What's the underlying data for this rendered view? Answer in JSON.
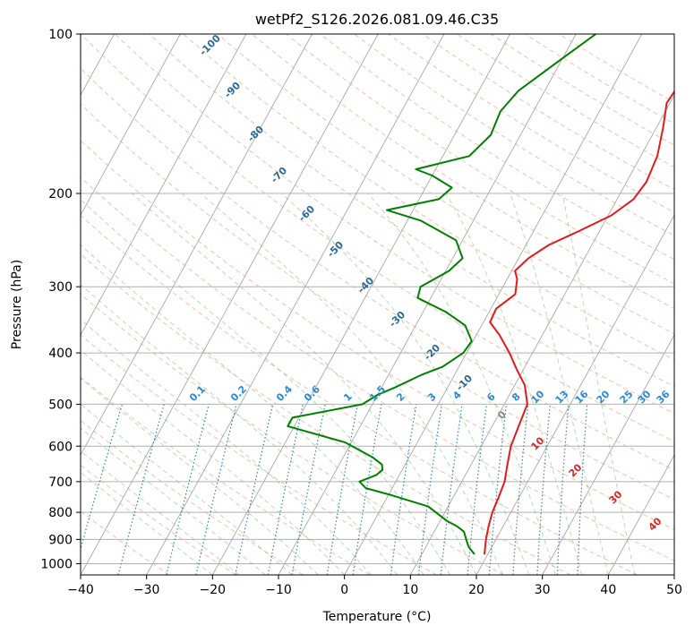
{
  "chart_data": {
    "type": "skew-t",
    "title": "wetPf2_S126.2026.081.09.46.C35",
    "xlabel": "Temperature (°C)",
    "ylabel": "Pressure (hPa)",
    "xlim": [
      -40,
      50
    ],
    "ylim": [
      1050,
      100
    ],
    "y_scale": "log",
    "grid": true,
    "x_ticks": [
      "−40",
      "−30",
      "−20",
      "−10",
      "0",
      "10",
      "20",
      "30",
      "40",
      "50"
    ],
    "x_tick_values": [
      -40,
      -30,
      -20,
      -10,
      0,
      10,
      20,
      30,
      40,
      50
    ],
    "y_ticks": [
      "100",
      "200",
      "300",
      "400",
      "500",
      "600",
      "700",
      "800",
      "900",
      "1000"
    ],
    "y_tick_values": [
      100,
      200,
      300,
      400,
      500,
      600,
      700,
      800,
      900,
      1000
    ],
    "series": [
      {
        "role": "temperature",
        "color": "#e31a1c",
        "points": [
          [
            19.5,
            960
          ],
          [
            18.5,
            900
          ],
          [
            17.8,
            850
          ],
          [
            17.2,
            800
          ],
          [
            16.9,
            750
          ],
          [
            16.5,
            700
          ],
          [
            15.5,
            650
          ],
          [
            14.5,
            600
          ],
          [
            14,
            550
          ],
          [
            13.5,
            500
          ],
          [
            11.5,
            460
          ],
          [
            9,
            430
          ],
          [
            6.5,
            400
          ],
          [
            3.5,
            370
          ],
          [
            1,
            350
          ],
          [
            0.8,
            330
          ],
          [
            2.5,
            310
          ],
          [
            1.5,
            290
          ],
          [
            0.5,
            280
          ],
          [
            1.5,
            265
          ],
          [
            3.5,
            250
          ],
          [
            7,
            235
          ],
          [
            10.5,
            220
          ],
          [
            12.5,
            205
          ],
          [
            13,
            190
          ],
          [
            12.5,
            170
          ],
          [
            11,
            150
          ],
          [
            9.5,
            135
          ],
          [
            10,
            120
          ],
          [
            9.5,
            110
          ],
          [
            9,
            100
          ]
        ]
      },
      {
        "role": "dewpoint",
        "color": "#008000",
        "points": [
          [
            18,
            960
          ],
          [
            16.5,
            930
          ],
          [
            15.5,
            900
          ],
          [
            14.5,
            870
          ],
          [
            13,
            850
          ],
          [
            11,
            830
          ],
          [
            7,
            780
          ],
          [
            0,
            740
          ],
          [
            -4,
            720
          ],
          [
            -5.5,
            700
          ],
          [
            -3.5,
            680
          ],
          [
            -3,
            665
          ],
          [
            -3.5,
            650
          ],
          [
            -5.5,
            630
          ],
          [
            -11,
            590
          ],
          [
            -21,
            550
          ],
          [
            -21,
            530
          ],
          [
            -11.5,
            500
          ],
          [
            -10,
            480
          ],
          [
            -8,
            465
          ],
          [
            -5,
            440
          ],
          [
            -2.5,
            425
          ],
          [
            -0.5,
            400
          ],
          [
            -0.2,
            380
          ],
          [
            -2.5,
            355
          ],
          [
            -6.5,
            335
          ],
          [
            -12,
            315
          ],
          [
            -12.5,
            300
          ],
          [
            -9.5,
            280
          ],
          [
            -8.5,
            265
          ],
          [
            -11,
            245
          ],
          [
            -18,
            225
          ],
          [
            -24,
            215
          ],
          [
            -17,
            205
          ],
          [
            -16,
            195
          ],
          [
            -20,
            185
          ],
          [
            -23,
            180
          ],
          [
            -16,
            170
          ],
          [
            -14.5,
            155
          ],
          [
            -15,
            140
          ],
          [
            -14,
            128
          ],
          [
            -11,
            115
          ],
          [
            -7,
            100
          ]
        ]
      }
    ],
    "dry_adiabat_labels": [
      "-100",
      "-90",
      "-80",
      "-70",
      "-60",
      "-50",
      "-40",
      "-30",
      "-20",
      "-10"
    ],
    "moist_adiabat_labels": [
      "0",
      "10",
      "20",
      "30",
      "40"
    ],
    "mixing_ratio_labels": [
      "0.1",
      "0.2",
      "0.4",
      "0.6",
      "1",
      "1.5",
      "2",
      "3",
      "4",
      "6",
      "8",
      "10",
      "13",
      "16",
      "20",
      "25",
      "30",
      "36"
    ]
  }
}
